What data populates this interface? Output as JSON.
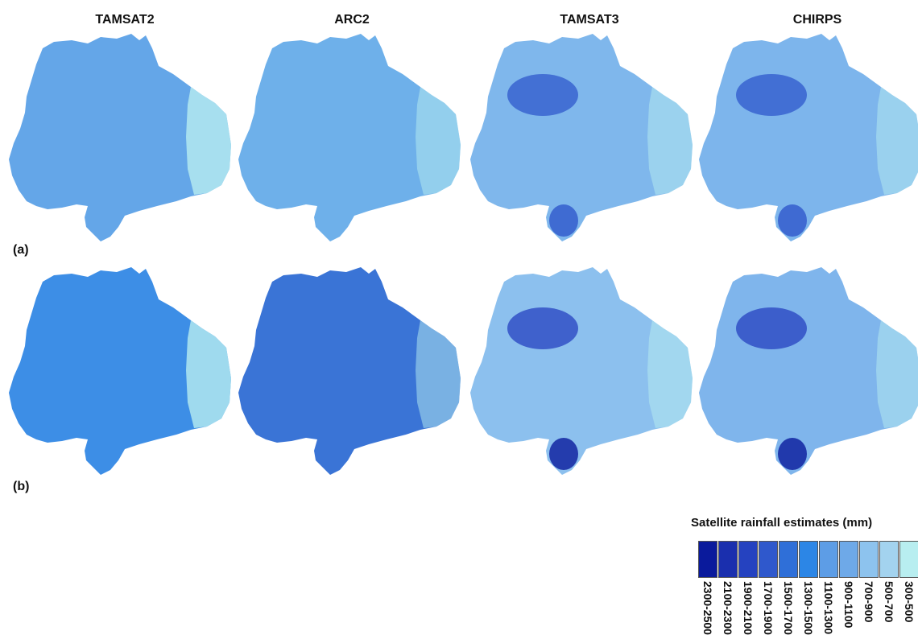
{
  "columns": [
    "TAMSAT2",
    "ARC2",
    "TAMSAT3",
    "CHIRPS"
  ],
  "rows": [
    {
      "label": "(a)",
      "fills": [
        "#64a6e8",
        "#6eb0ea",
        "#7fb7ec",
        "#7db5ec"
      ]
    },
    {
      "label": "(b)",
      "fills": [
        "#3d8ee6",
        "#3a74d6",
        "#8cc0ee",
        "#7fb5ec"
      ]
    }
  ],
  "legend": {
    "title": "Satellite rainfall estimates (mm)",
    "classes": [
      {
        "range": "2300-2500",
        "color": "#0a1a9c"
      },
      {
        "range": "2100-2300",
        "color": "#1a2fae"
      },
      {
        "range": "1900-2100",
        "color": "#2542c0"
      },
      {
        "range": "1700-1900",
        "color": "#2f58cc"
      },
      {
        "range": "1500-1700",
        "color": "#2f6fd8"
      },
      {
        "range": "1300-1500",
        "color": "#2c86e6"
      },
      {
        "range": "1100-1300",
        "color": "#5d9de6"
      },
      {
        "range": "900-1100",
        "color": "#6ea9e8"
      },
      {
        "range": "700-900",
        "color": "#8dc3ee"
      },
      {
        "range": "500-700",
        "color": "#a3d3ef"
      },
      {
        "range": "300-500",
        "color": "#b8eef0"
      }
    ]
  }
}
